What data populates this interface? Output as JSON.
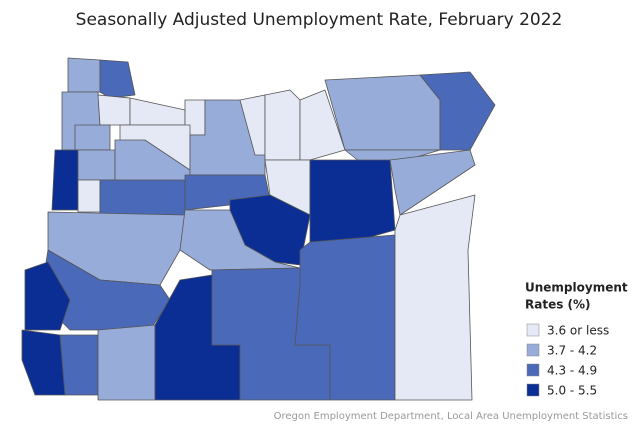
{
  "title": "Seasonally Adjusted Unemployment Rate, February 2022",
  "legend": {
    "title": [
      "Unemployment",
      "Rates (%)"
    ],
    "items": [
      {
        "label": "3.6 or less",
        "color": "#e5e9f5"
      },
      {
        "label": "3.7 - 4.2",
        "color": "#98acd9"
      },
      {
        "label": "4.3 - 4.9",
        "color": "#4a69b9"
      },
      {
        "label": "5.0 - 5.5",
        "color": "#0b2e95"
      }
    ]
  },
  "source": "Oregon Employment Department, Local Area Unemployment Statistics"
}
